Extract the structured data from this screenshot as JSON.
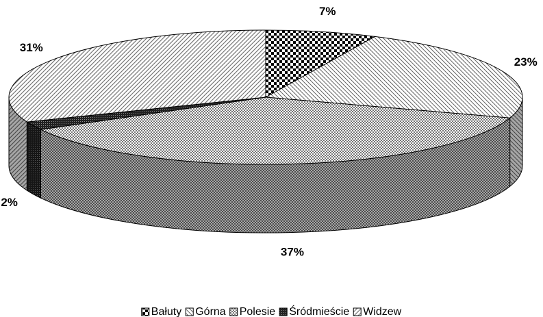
{
  "chart_data": {
    "type": "pie3d",
    "categories": [
      "Bałuty",
      "Górna",
      "Polesie",
      "Śródmieście",
      "Widzew"
    ],
    "values": [
      7,
      23,
      37,
      2,
      31
    ],
    "value_labels": [
      "7%",
      "23%",
      "37%",
      "2%",
      "31%"
    ]
  }
}
